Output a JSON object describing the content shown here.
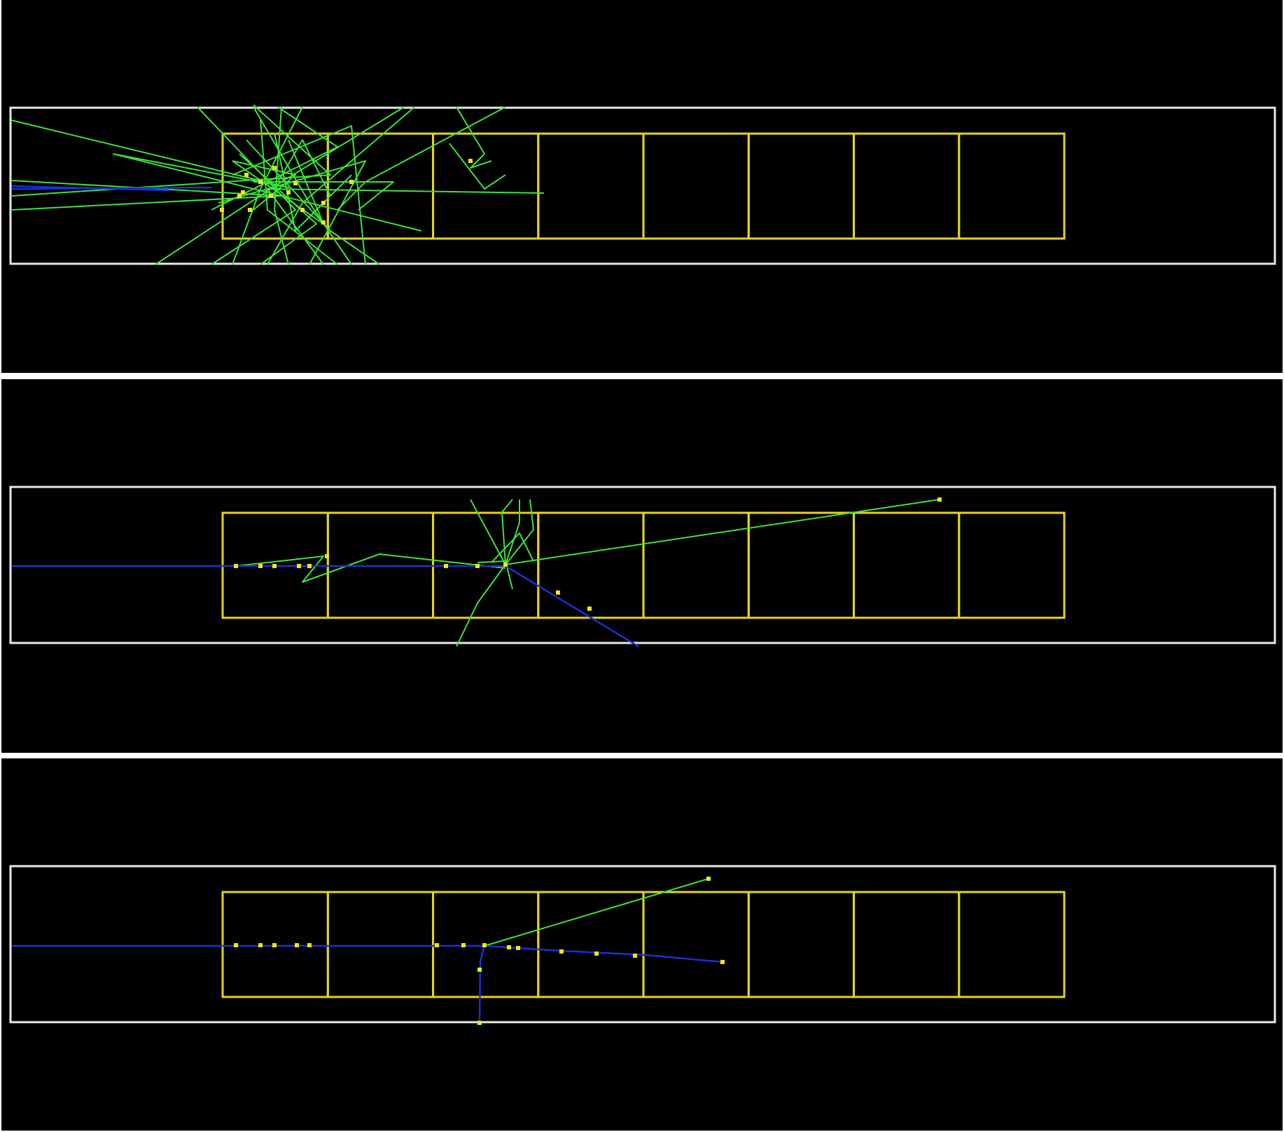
{
  "figure": {
    "colors": {
      "background": "#000000",
      "separator": "#ffffff",
      "world_outline": "#e8e8e8",
      "detector_cells": "#e6d41e",
      "primary_track": "#1c2fd6",
      "secondary_tracks": "#3ee23a",
      "hit_markers": "#f2e41a"
    },
    "panels": [
      {
        "name": "event-1",
        "detector_cell_count": 8,
        "tracks": [
          {
            "type": "primary",
            "points": [
              [
                15,
                270
              ],
              [
                300,
                268
              ]
            ]
          },
          {
            "type": "primary",
            "points": [
              [
                15,
                266
              ],
              [
                240,
                272
              ]
            ]
          },
          {
            "type": "secondary",
            "points": [
              [
                15,
                172
              ],
              [
                410,
                268
              ],
              [
                160,
                220
              ],
              [
                600,
                330
              ]
            ]
          },
          {
            "type": "secondary",
            "points": [
              [
                15,
                258
              ],
              [
                400,
                280
              ],
              [
                15,
                300
              ]
            ]
          },
          {
            "type": "secondary",
            "points": [
              [
                15,
                280
              ],
              [
                470,
                250
              ],
              [
                360,
                150
              ]
            ]
          },
          {
            "type": "secondary",
            "points": [
              [
                280,
                153
              ],
              [
                420,
                300
              ],
              [
                300,
                378
              ]
            ]
          },
          {
            "type": "secondary",
            "points": [
              [
                360,
                153
              ],
              [
                440,
                290
              ],
              [
                500,
                378
              ]
            ]
          },
          {
            "type": "secondary",
            "points": [
              [
                400,
                153
              ],
              [
                390,
                300
              ],
              [
                410,
                378
              ]
            ]
          },
          {
            "type": "secondary",
            "points": [
              [
                430,
                153
              ],
              [
                370,
                270
              ],
              [
                330,
                378
              ]
            ]
          },
          {
            "type": "secondary",
            "points": [
              [
                575,
                153
              ],
              [
                400,
                260
              ],
              [
                220,
                378
              ]
            ]
          },
          {
            "type": "secondary",
            "points": [
              [
                590,
                153
              ],
              [
                430,
                290
              ],
              [
                380,
                378
              ]
            ]
          },
          {
            "type": "secondary",
            "points": [
              [
                650,
                153
              ],
              [
                690,
                220
              ],
              [
                670,
                240
              ],
              [
                700,
                230
              ]
            ]
          },
          {
            "type": "secondary",
            "points": [
              [
                720,
                153
              ],
              [
                520,
                260
              ],
              [
                480,
                300
              ]
            ]
          },
          {
            "type": "secondary",
            "points": [
              [
                775,
                276
              ],
              [
                380,
                270
              ],
              [
                460,
                378
              ]
            ]
          },
          {
            "type": "secondary",
            "points": [
              [
                640,
                205
              ],
              [
                690,
                270
              ],
              [
                720,
                250
              ]
            ]
          },
          {
            "type": "secondary",
            "points": [
              [
                350,
                200
              ],
              [
                470,
                330
              ],
              [
                540,
                378
              ]
            ]
          },
          {
            "type": "secondary",
            "points": [
              [
                330,
                250
              ],
              [
                500,
                180
              ],
              [
                520,
                378
              ]
            ]
          },
          {
            "type": "secondary",
            "points": [
              [
                310,
                290
              ],
              [
                520,
                230
              ],
              [
                440,
                378
              ]
            ]
          },
          {
            "type": "secondary",
            "points": [
              [
                390,
                190
              ],
              [
                420,
                330
              ],
              [
                500,
                250
              ]
            ]
          },
          {
            "type": "secondary",
            "points": [
              [
                340,
                220
              ],
              [
                450,
                320
              ],
              [
                370,
                378
              ]
            ]
          },
          {
            "type": "secondary",
            "points": [
              [
                300,
                300
              ],
              [
                480,
                210
              ],
              [
                395,
                153
              ]
            ]
          },
          {
            "type": "secondary",
            "points": [
              [
                370,
                170
              ],
              [
                380,
                300
              ],
              [
                480,
                378
              ]
            ]
          },
          {
            "type": "secondary",
            "points": [
              [
                410,
                200
              ],
              [
                460,
                320
              ],
              [
                330,
                230
              ]
            ]
          },
          {
            "type": "secondary",
            "points": [
              [
                360,
                260
              ],
              [
                560,
                260
              ],
              [
                510,
                300
              ]
            ]
          },
          {
            "type": "secondary",
            "points": [
              [
                395,
                260
              ],
              [
                430,
                200
              ],
              [
                470,
                280
              ]
            ]
          },
          {
            "type": "secondary",
            "points": [
              [
                330,
                230
              ],
              [
                420,
                250
              ],
              [
                360,
                300
              ]
            ]
          }
        ],
        "hits": [
          [
            340,
            280
          ],
          [
            370,
            260
          ],
          [
            390,
            240
          ],
          [
            410,
            275
          ],
          [
            460,
            290
          ],
          [
            500,
            260
          ],
          [
            350,
            250
          ],
          [
            430,
            300
          ],
          [
            670,
            230
          ],
          [
            345,
            275
          ],
          [
            385,
            280
          ],
          [
            420,
            262
          ],
          [
            460,
            318
          ],
          [
            315,
            300
          ],
          [
            355,
            300
          ]
        ]
      },
      {
        "name": "event-2",
        "detector_cell_count": 8,
        "tracks": [
          {
            "type": "primary",
            "points": [
              [
                15,
                267
              ],
              [
                720,
                267
              ],
              [
                910,
                382
              ]
            ]
          },
          {
            "type": "secondary",
            "points": [
              [
                335,
                267
              ],
              [
                460,
                253
              ],
              [
                430,
                290
              ],
              [
                540,
                250
              ],
              [
                720,
                270
              ]
            ]
          },
          {
            "type": "secondary",
            "points": [
              [
                720,
                265
              ],
              [
                1340,
                172
              ]
            ]
          },
          {
            "type": "secondary",
            "points": [
              [
                720,
                265
              ],
              [
                760,
                215
              ],
              [
                755,
                172
              ]
            ]
          },
          {
            "type": "secondary",
            "points": [
              [
                720,
                265
              ],
              [
                715,
                190
              ],
              [
                730,
                172
              ]
            ]
          },
          {
            "type": "secondary",
            "points": [
              [
                720,
                265
              ],
              [
                670,
                172
              ]
            ]
          },
          {
            "type": "secondary",
            "points": [
              [
                720,
                265
              ],
              [
                680,
                320
              ],
              [
                650,
                382
              ]
            ]
          },
          {
            "type": "secondary",
            "points": [
              [
                720,
                265
              ],
              [
                740,
                205
              ],
              [
                740,
                172
              ]
            ]
          },
          {
            "type": "secondary",
            "points": [
              [
                700,
                262
              ],
              [
                740,
                220
              ],
              [
                760,
                260
              ]
            ]
          },
          {
            "type": "secondary",
            "points": [
              [
                680,
                262
              ],
              [
                720,
                260
              ],
              [
                730,
                300
              ]
            ]
          }
        ],
        "hits": [
          [
            335,
            267
          ],
          [
            370,
            267
          ],
          [
            390,
            267
          ],
          [
            425,
            267
          ],
          [
            440,
            267
          ],
          [
            465,
            253
          ],
          [
            635,
            267
          ],
          [
            680,
            267
          ],
          [
            720,
            265
          ],
          [
            795,
            305
          ],
          [
            840,
            328
          ],
          [
            1340,
            172
          ]
        ]
      },
      {
        "name": "event-3",
        "detector_cell_count": 8,
        "tracks": [
          {
            "type": "primary",
            "points": [
              [
                15,
                268
              ],
              [
                690,
                268
              ],
              [
                800,
                275
              ],
              [
                920,
                281
              ],
              [
                1030,
                291
              ]
            ]
          },
          {
            "type": "primary",
            "points": [
              [
                690,
                268
              ],
              [
                684,
                290
              ],
              [
                683,
                380
              ]
            ]
          },
          {
            "type": "secondary",
            "points": [
              [
                690,
                268
              ],
              [
                1010,
                172
              ]
            ]
          }
        ],
        "hits": [
          [
            335,
            267
          ],
          [
            370,
            267
          ],
          [
            390,
            267
          ],
          [
            422,
            267
          ],
          [
            440,
            267
          ],
          [
            622,
            267
          ],
          [
            660,
            267
          ],
          [
            690,
            267
          ],
          [
            725,
            270
          ],
          [
            738,
            271
          ],
          [
            800,
            276
          ],
          [
            850,
            279
          ],
          [
            905,
            282
          ],
          [
            1030,
            291
          ],
          [
            683,
            302
          ],
          [
            683,
            378
          ],
          [
            1010,
            172
          ]
        ]
      }
    ]
  }
}
